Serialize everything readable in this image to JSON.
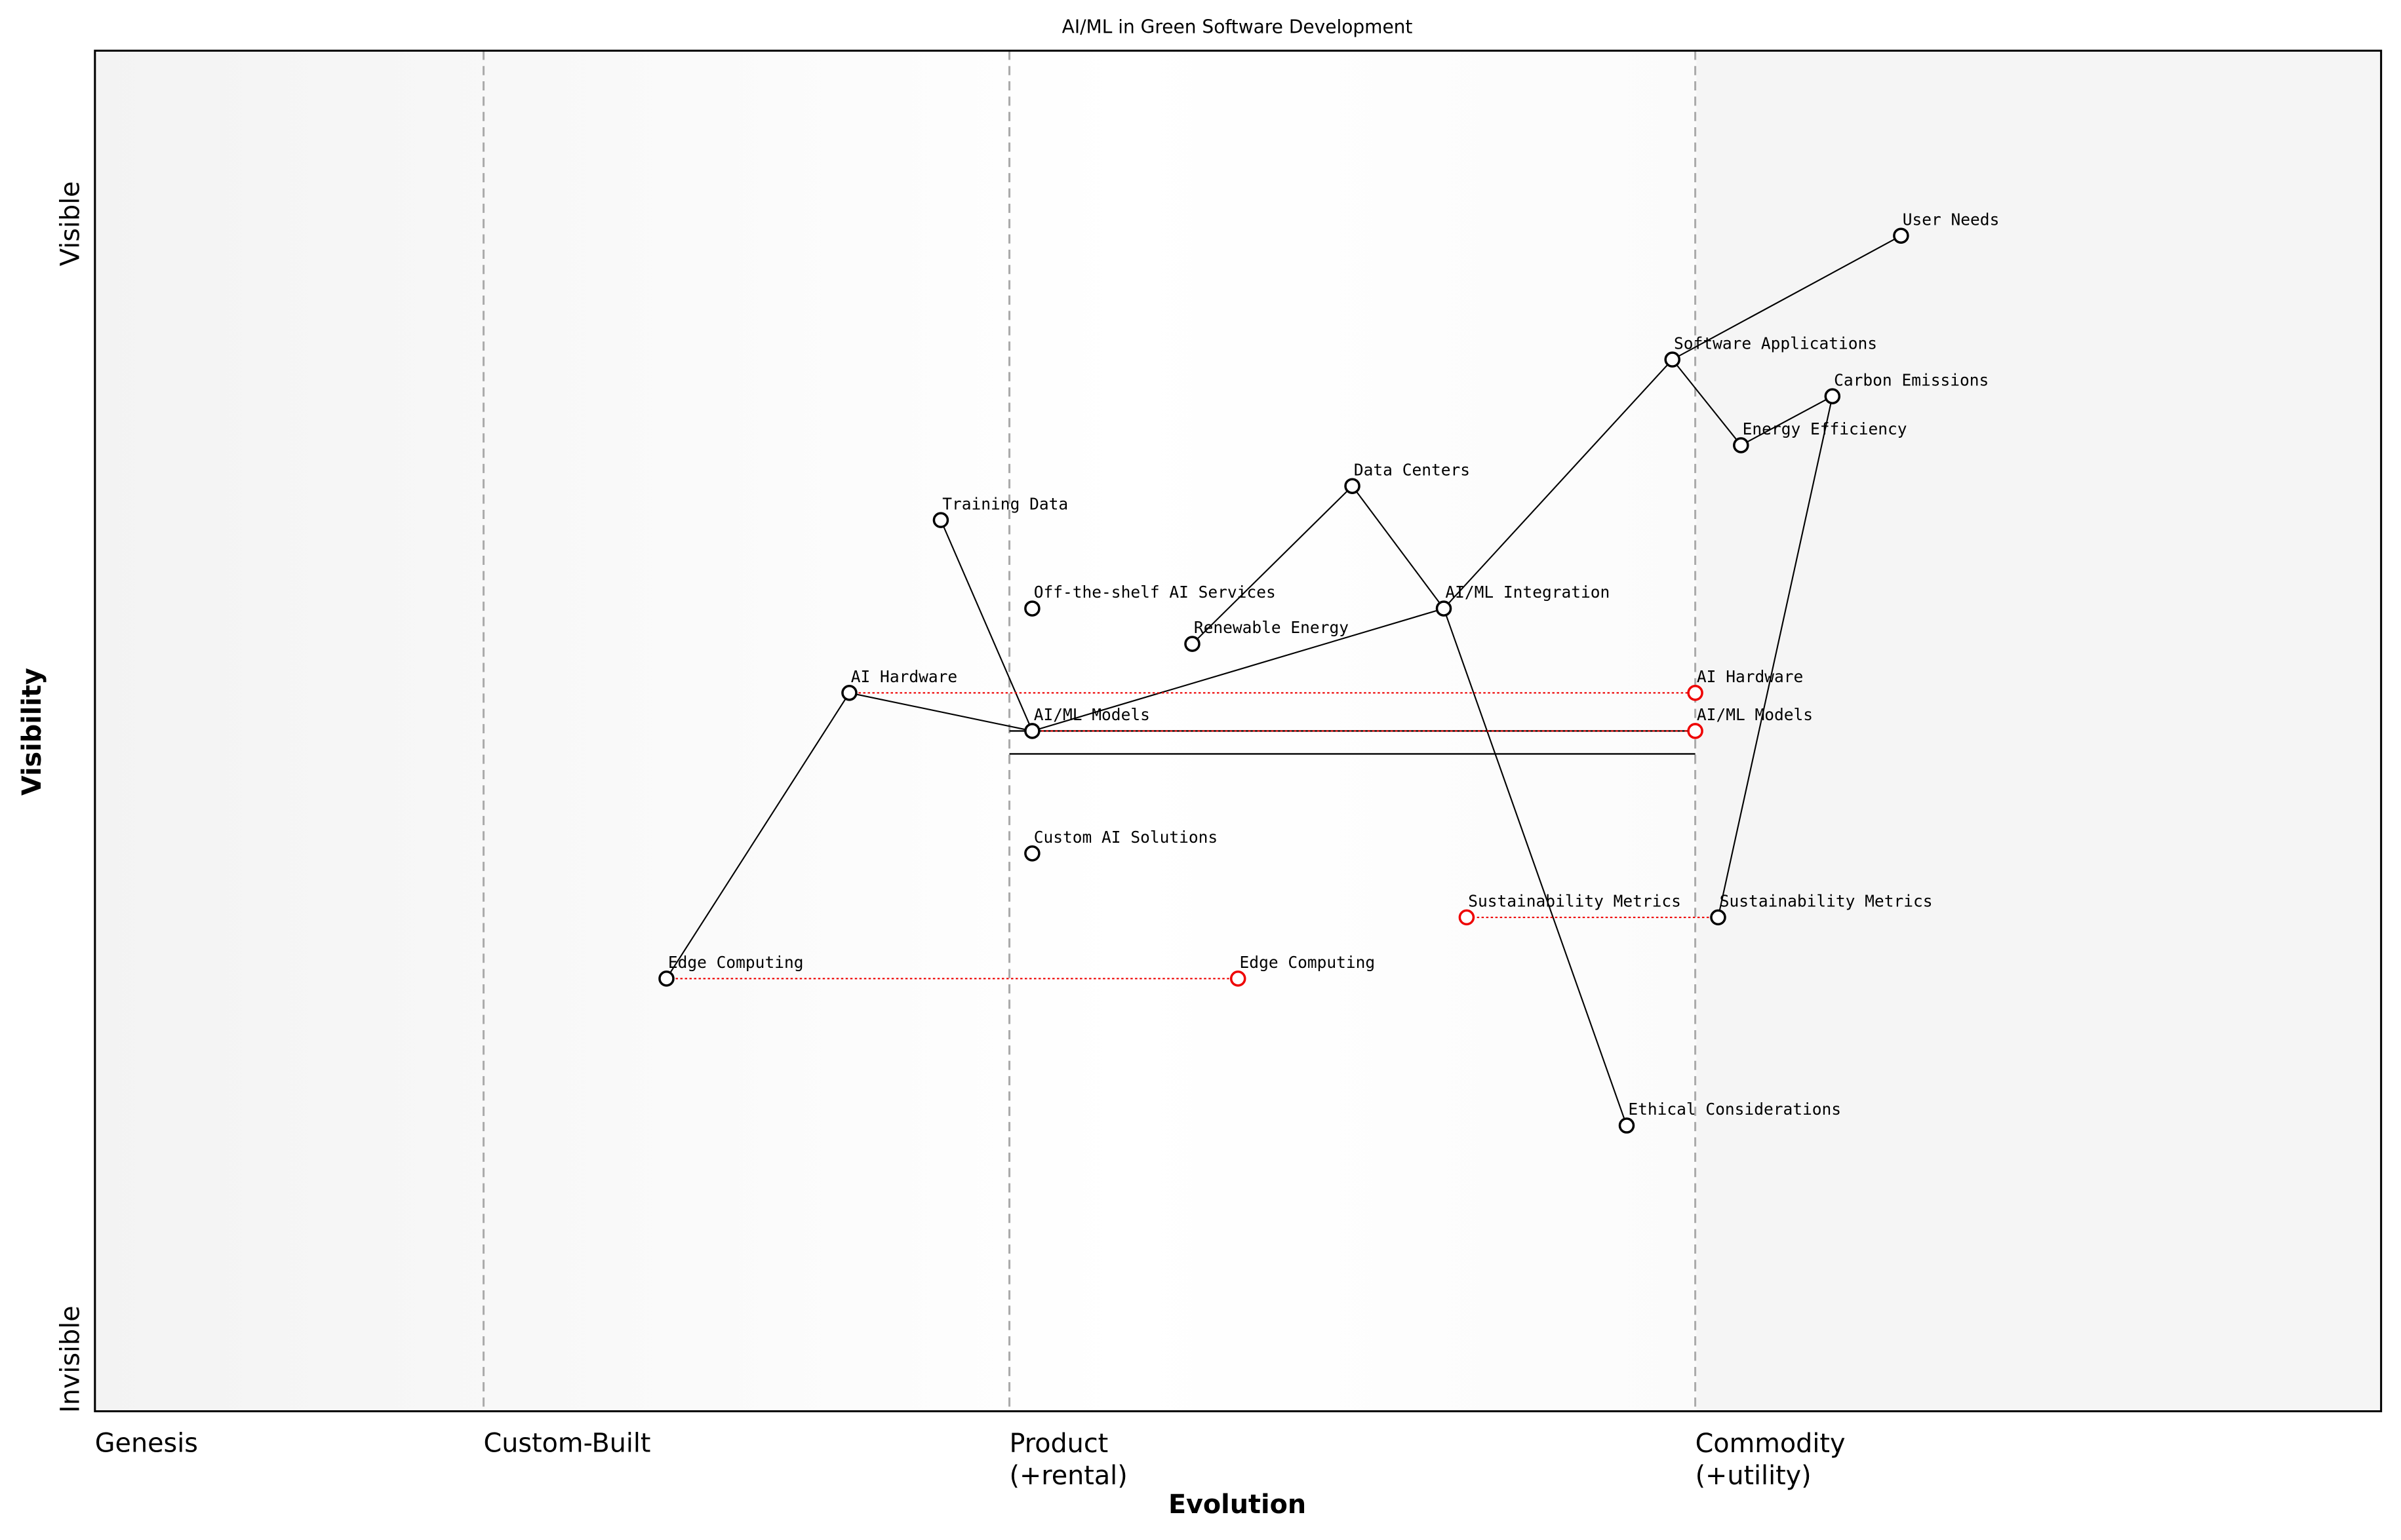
{
  "chart_data": {
    "type": "wardley",
    "title": "AI/ML in Green Software Development",
    "x_label": "Evolution",
    "y_label": "Visibility",
    "y_labels": {
      "top": "Visible",
      "bottom": "Invisible"
    },
    "xlim": [
      0,
      1
    ],
    "ylim": [
      0,
      1
    ],
    "xticks": [
      {
        "value": 0,
        "label": "Genesis"
      },
      {
        "value": 0.17,
        "label": "Custom-Built"
      },
      {
        "value": 0.4,
        "label": "Product\n(+rental)"
      },
      {
        "value": 0.7,
        "label": "Commodity\n(+utility)"
      }
    ],
    "components": [
      {
        "name": "User Needs",
        "evolution": 0.79,
        "visibility": 0.864
      },
      {
        "name": "Software Applications",
        "evolution": 0.69,
        "visibility": 0.773
      },
      {
        "name": "Carbon Emissions",
        "evolution": 0.76,
        "visibility": 0.746
      },
      {
        "name": "Energy Efficiency",
        "evolution": 0.72,
        "visibility": 0.71
      },
      {
        "name": "Data Centers",
        "evolution": 0.55,
        "visibility": 0.68
      },
      {
        "name": "Training Data",
        "evolution": 0.37,
        "visibility": 0.655
      },
      {
        "name": "Off-the-shelf AI Services",
        "evolution": 0.41,
        "visibility": 0.59
      },
      {
        "name": "AI/ML Integration",
        "evolution": 0.59,
        "visibility": 0.59
      },
      {
        "name": "Renewable Energy",
        "evolution": 0.48,
        "visibility": 0.564
      },
      {
        "name": "AI Hardware",
        "evolution": 0.33,
        "visibility": 0.528
      },
      {
        "name": "AI/ML Models",
        "evolution": 0.41,
        "visibility": 0.5
      },
      {
        "name": "Custom AI Solutions",
        "evolution": 0.41,
        "visibility": 0.41
      },
      {
        "name": "Sustainability Metrics",
        "evolution": 0.71,
        "visibility": 0.363
      },
      {
        "name": "Edge Computing",
        "evolution": 0.25,
        "visibility": 0.318
      },
      {
        "name": "Ethical Considerations",
        "evolution": 0.67,
        "visibility": 0.21
      }
    ],
    "links": [
      [
        0,
        1
      ],
      [
        1,
        3
      ],
      [
        3,
        2
      ],
      [
        2,
        12
      ],
      [
        1,
        7
      ],
      [
        7,
        10
      ],
      [
        7,
        14
      ],
      [
        4,
        7
      ],
      [
        4,
        8
      ],
      [
        5,
        10
      ],
      [
        9,
        10
      ],
      [
        9,
        13
      ]
    ],
    "evolve": [
      {
        "component": 9,
        "to": 0.7
      },
      {
        "component": 10,
        "to": 0.7
      },
      {
        "component": 12,
        "to": 0.6
      },
      {
        "component": 13,
        "to": 0.5
      }
    ],
    "pipeline": {
      "component": 10,
      "xlim": [
        0.4,
        0.7
      ]
    }
  }
}
